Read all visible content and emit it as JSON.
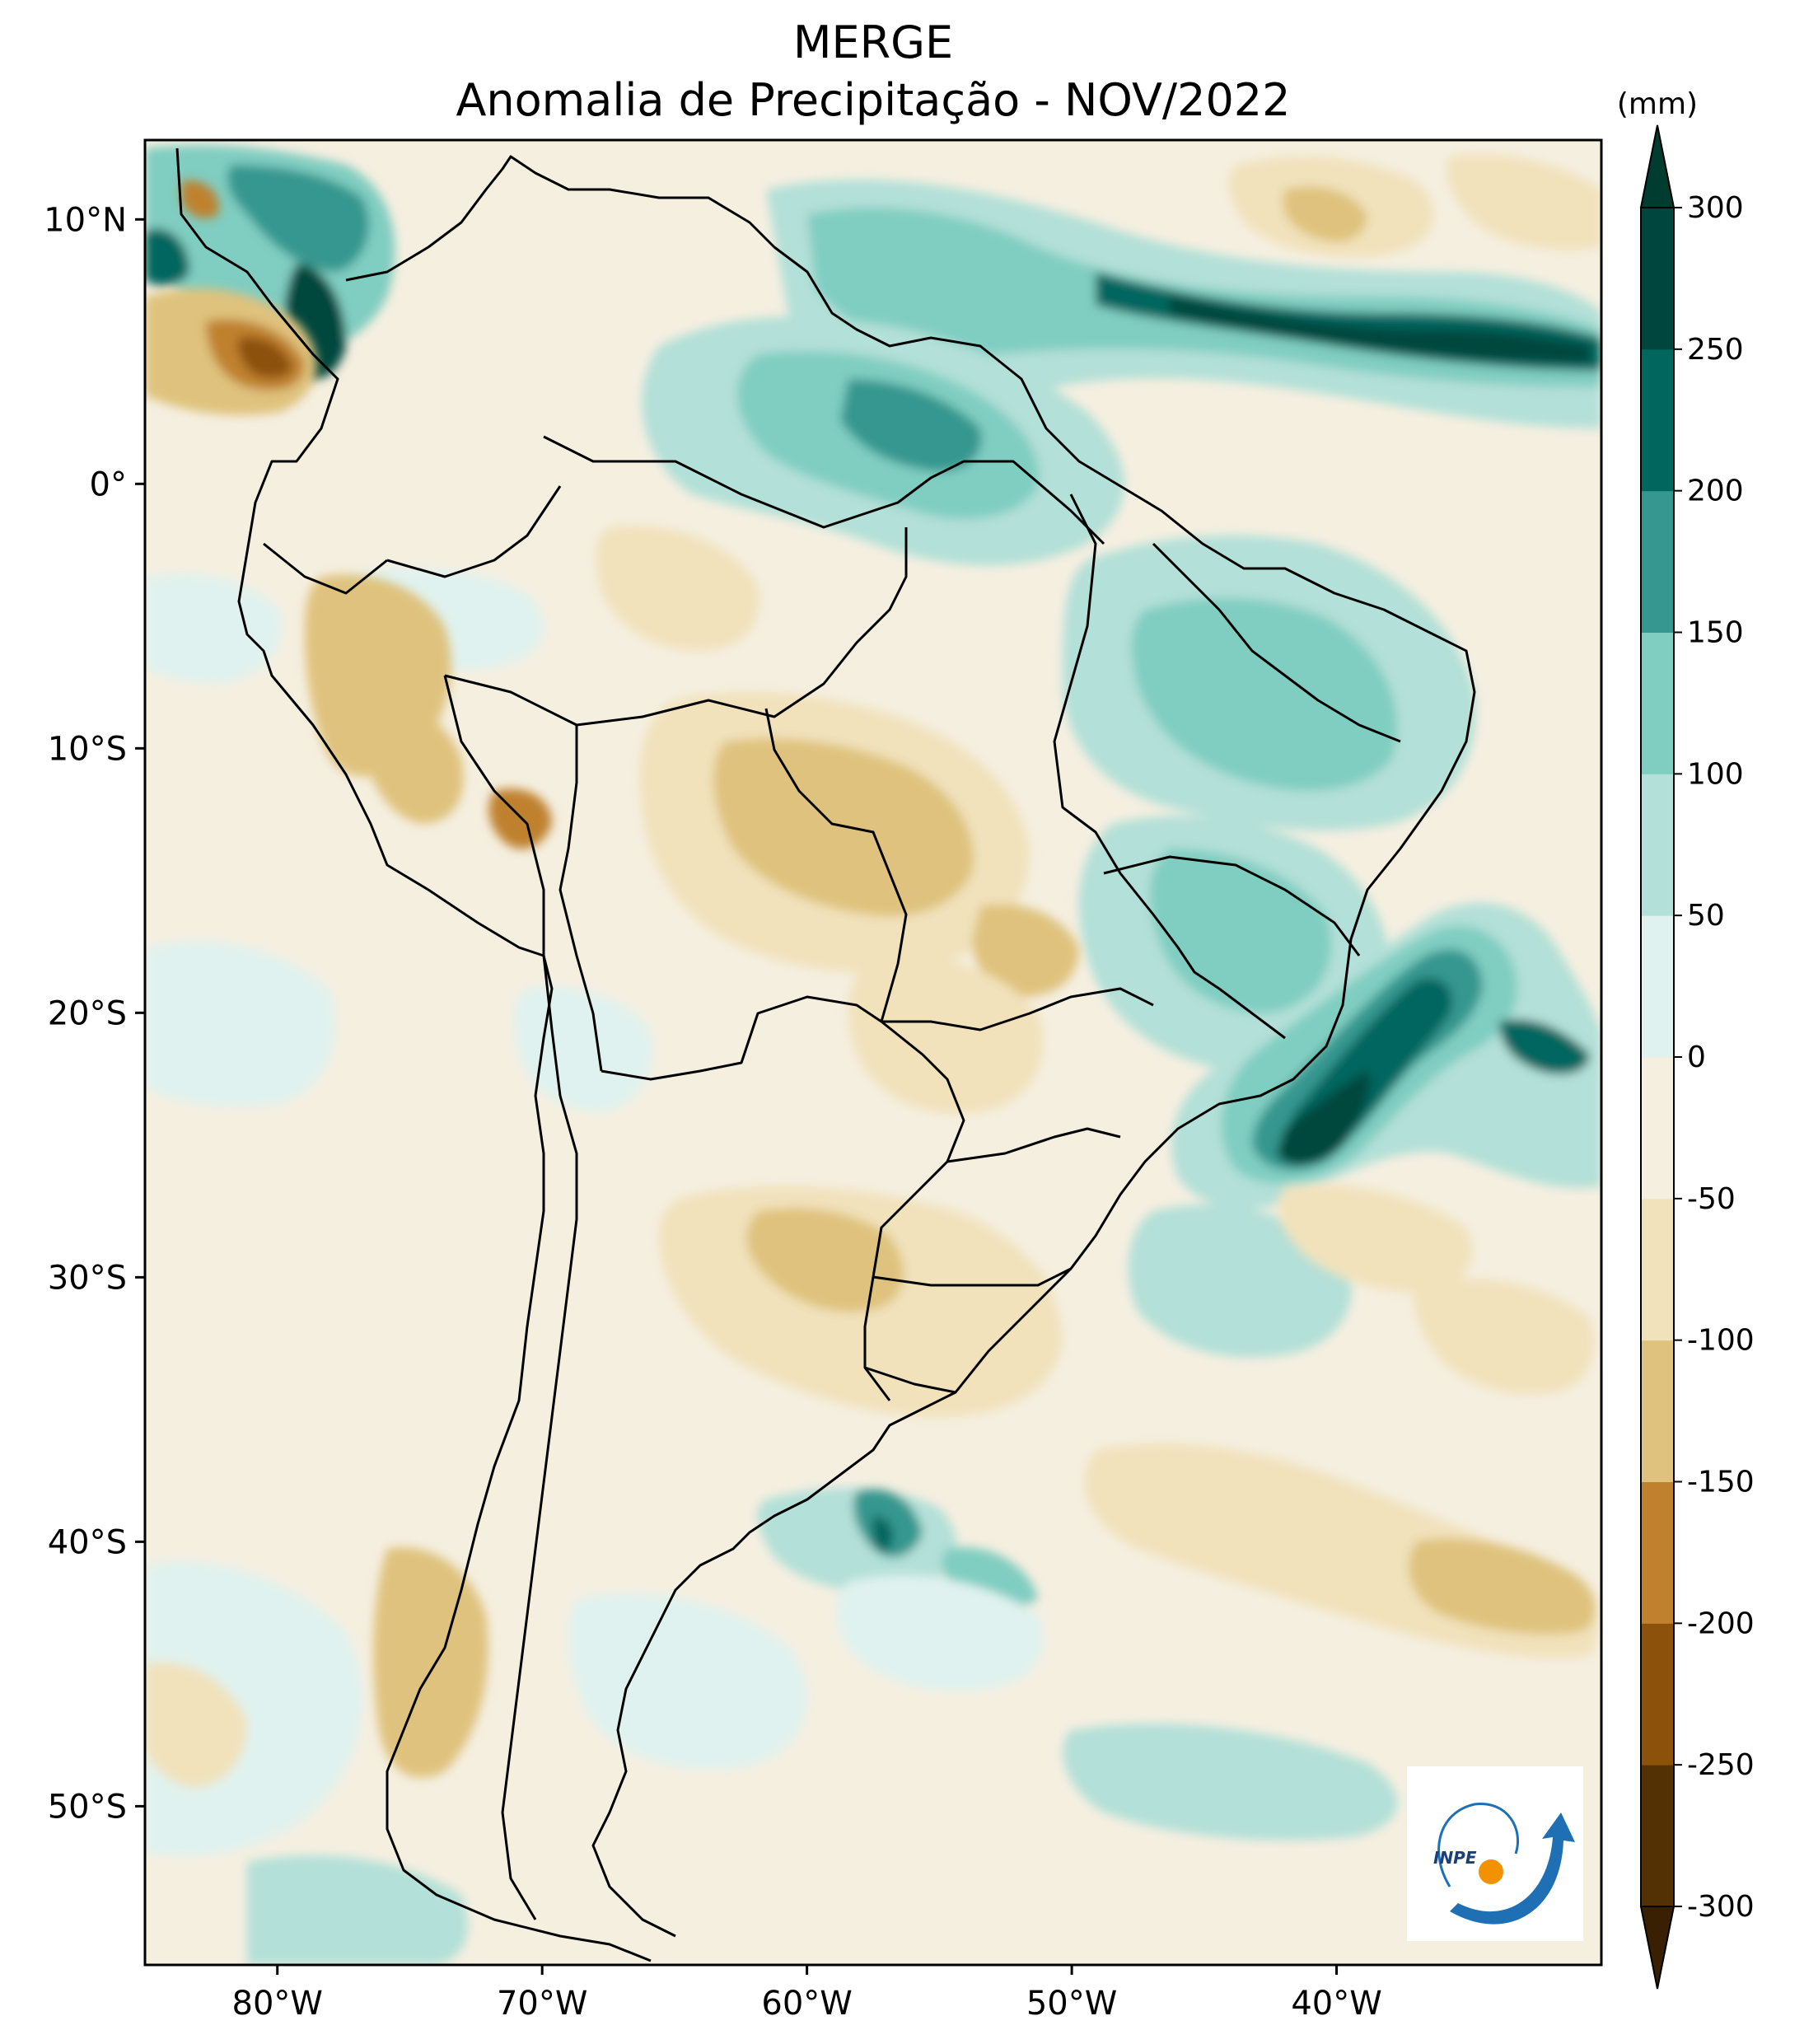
{
  "title": {
    "line1": "MERGE",
    "line2": "Anomalia de Precipitação - NOV/2022"
  },
  "map": {
    "lon_range": [
      -85,
      -30
    ],
    "lat_range": [
      -56,
      13
    ],
    "lat_ticks": [
      {
        "value": 10,
        "label": "10°N"
      },
      {
        "value": 0,
        "label": "0°"
      },
      {
        "value": -10,
        "label": "10°S"
      },
      {
        "value": -20,
        "label": "20°S"
      },
      {
        "value": -30,
        "label": "30°S"
      },
      {
        "value": -40,
        "label": "40°S"
      },
      {
        "value": -50,
        "label": "50°S"
      }
    ],
    "lon_ticks": [
      {
        "value": -80,
        "label": "80°W"
      },
      {
        "value": -70,
        "label": "70°W"
      },
      {
        "value": -60,
        "label": "60°W"
      },
      {
        "value": -50,
        "label": "50°W"
      },
      {
        "value": -40,
        "label": "40°W"
      }
    ]
  },
  "colorbar": {
    "unit": "(mm)",
    "levels": [
      -300,
      -250,
      -200,
      -150,
      -100,
      -50,
      0,
      50,
      100,
      150,
      200,
      250,
      300
    ],
    "labels": [
      "-300",
      "-250",
      "-200",
      "-150",
      "-100",
      "-50",
      "0",
      "50",
      "100",
      "150",
      "200",
      "250",
      "300"
    ],
    "colors": [
      "#543005",
      "#8c510a",
      "#bf812d",
      "#dfc27d",
      "#f1e2bc",
      "#f5efe0",
      "#e0f2ef",
      "#b3e0d8",
      "#80cdc1",
      "#35978f",
      "#01665e",
      "#01463e"
    ],
    "under_color": "#3a2003",
    "over_color": "#003c30"
  },
  "colors": {
    "positive_1": "#e0f2ef",
    "positive_2": "#b3e0d8",
    "positive_3": "#80cdc1",
    "positive_4": "#35978f",
    "positive_5": "#01665e",
    "positive_6": "#01463e",
    "negative_1": "#f1e2bc",
    "negative_2": "#dfc27d",
    "negative_3": "#bf812d",
    "negative_4": "#8c510a",
    "background": "#f5efe0",
    "land_border": "#000000"
  },
  "logo": {
    "text": "INPE"
  }
}
